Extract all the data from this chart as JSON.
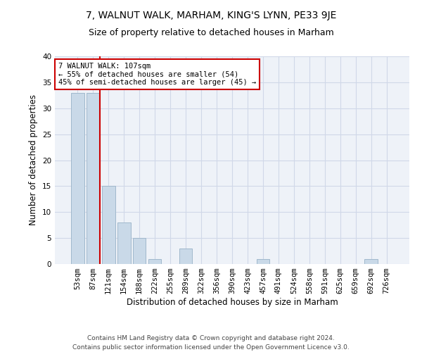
{
  "title": "7, WALNUT WALK, MARHAM, KING'S LYNN, PE33 9JE",
  "subtitle": "Size of property relative to detached houses in Marham",
  "xlabel": "Distribution of detached houses by size in Marham",
  "ylabel": "Number of detached properties",
  "categories": [
    "53sqm",
    "87sqm",
    "121sqm",
    "154sqm",
    "188sqm",
    "222sqm",
    "255sqm",
    "289sqm",
    "322sqm",
    "356sqm",
    "390sqm",
    "423sqm",
    "457sqm",
    "491sqm",
    "524sqm",
    "558sqm",
    "591sqm",
    "625sqm",
    "659sqm",
    "692sqm",
    "726sqm"
  ],
  "values": [
    33,
    33,
    15,
    8,
    5,
    1,
    0,
    3,
    0,
    0,
    0,
    0,
    1,
    0,
    0,
    0,
    0,
    0,
    0,
    1,
    0
  ],
  "bar_color": "#c9d9e8",
  "bar_edge_color": "#a0b8cc",
  "grid_color": "#d0d8e8",
  "background_color": "#eef2f8",
  "vline_color": "#cc0000",
  "annotation_text": "7 WALNUT WALK: 107sqm\n← 55% of detached houses are smaller (54)\n45% of semi-detached houses are larger (45) →",
  "annotation_box_color": "#ffffff",
  "annotation_box_edge": "#cc0000",
  "ylim": [
    0,
    40
  ],
  "yticks": [
    0,
    5,
    10,
    15,
    20,
    25,
    30,
    35,
    40
  ],
  "footer_line1": "Contains HM Land Registry data © Crown copyright and database right 2024.",
  "footer_line2": "Contains public sector information licensed under the Open Government Licence v3.0.",
  "title_fontsize": 10,
  "subtitle_fontsize": 9,
  "tick_fontsize": 7.5,
  "label_fontsize": 8.5,
  "annotation_fontsize": 7.5,
  "footer_fontsize": 6.5
}
